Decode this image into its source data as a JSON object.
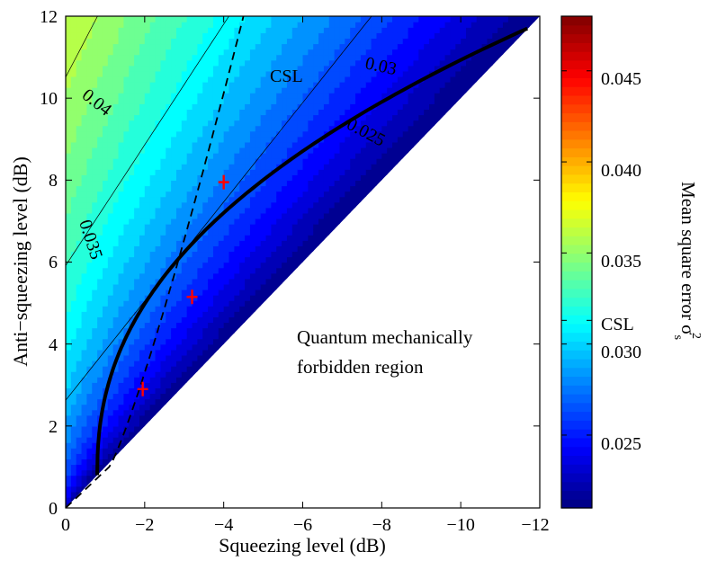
{
  "chart_data": {
    "type": "heatmap",
    "xlabel": "Squeezing level (dB)",
    "ylabel": "Anti−squeezing level (dB)",
    "x_ticks": [
      "0",
      "−2",
      "−4",
      "−6",
      "−8",
      "−10",
      "−12"
    ],
    "y_ticks": [
      "0",
      "2",
      "4",
      "6",
      "8",
      "10",
      "12"
    ],
    "xlim": [
      0,
      -12
    ],
    "ylim": [
      0,
      12
    ],
    "colormap": "jet",
    "colorbar": {
      "label": "Mean square error σ",
      "label_superscript": "2",
      "label_subscript": "s",
      "range": [
        0.021,
        0.048
      ],
      "ticks": [
        "0.025",
        "0.030",
        "0.035",
        "0.040",
        "0.045"
      ],
      "tick_values": [
        0.025,
        0.03,
        0.035,
        0.04,
        0.045
      ],
      "csl_label": "CSL",
      "csl_value": 0.0313
    },
    "contour_labels": [
      {
        "text": "0.04",
        "x": -1.0,
        "y": 10.4
      },
      {
        "text": "0.035",
        "x": -0.8,
        "y": 6.8
      },
      {
        "text": "0.03",
        "x": -8.3,
        "y": 10.7
      },
      {
        "text": "0.025",
        "x": -8.1,
        "y": 9.0
      }
    ],
    "csl_curve_label": {
      "text": "CSL",
      "x": -6.6,
      "y": 10.6
    },
    "region_label": [
      "Quantum mechanically",
      "forbidden region"
    ],
    "measured_points": [
      {
        "x": -1.95,
        "y": 2.9
      },
      {
        "x": -3.2,
        "y": 5.15
      },
      {
        "x": -4.0,
        "y": 7.95
      }
    ],
    "colors": {
      "measured_points": "#ff0000",
      "csl_line": "#000000",
      "dashed_line": "#000000"
    }
  }
}
